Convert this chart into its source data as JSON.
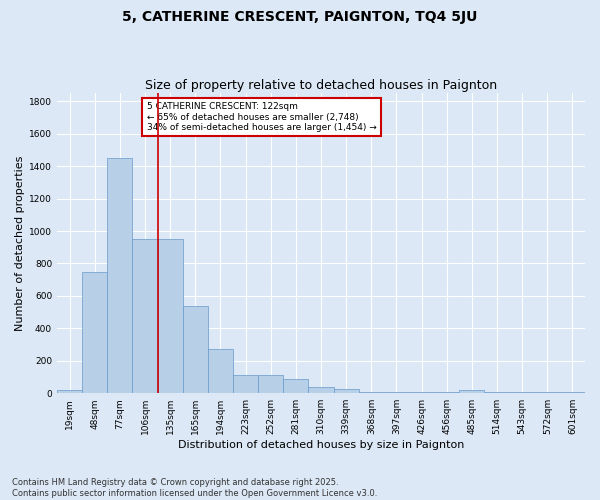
{
  "title": "5, CATHERINE CRESCENT, PAIGNTON, TQ4 5JU",
  "subtitle": "Size of property relative to detached houses in Paignton",
  "xlabel": "Distribution of detached houses by size in Paignton",
  "ylabel": "Number of detached properties",
  "bar_labels": [
    "19sqm",
    "48sqm",
    "77sqm",
    "106sqm",
    "135sqm",
    "165sqm",
    "194sqm",
    "223sqm",
    "252sqm",
    "281sqm",
    "310sqm",
    "339sqm",
    "368sqm",
    "397sqm",
    "426sqm",
    "456sqm",
    "485sqm",
    "514sqm",
    "543sqm",
    "572sqm",
    "601sqm"
  ],
  "bar_values": [
    20,
    750,
    1450,
    950,
    950,
    535,
    275,
    110,
    110,
    90,
    40,
    25,
    10,
    10,
    10,
    10,
    20,
    10,
    10,
    10,
    10
  ],
  "bar_color": "#b8cfe8",
  "bar_edge_color": "#6699cc",
  "vline_color": "#cc0000",
  "vline_pos": 3.5,
  "annotation_text": "5 CATHERINE CRESCENT: 122sqm\n← 65% of detached houses are smaller (2,748)\n34% of semi-detached houses are larger (1,454) →",
  "annotation_box_color": "#cc0000",
  "ylim": [
    0,
    1850
  ],
  "yticks": [
    0,
    200,
    400,
    600,
    800,
    1000,
    1200,
    1400,
    1600,
    1800
  ],
  "footer": "Contains HM Land Registry data © Crown copyright and database right 2025.\nContains public sector information licensed under the Open Government Licence v3.0.",
  "bg_color": "#dce8f5",
  "plot_bg_color": "#dce8f5",
  "grid_color": "#ffffff",
  "title_fontsize": 10,
  "subtitle_fontsize": 9,
  "axis_label_fontsize": 8,
  "tick_fontsize": 6.5,
  "annot_fontsize": 6.5,
  "footer_fontsize": 6,
  "ylabel_fontsize": 8
}
